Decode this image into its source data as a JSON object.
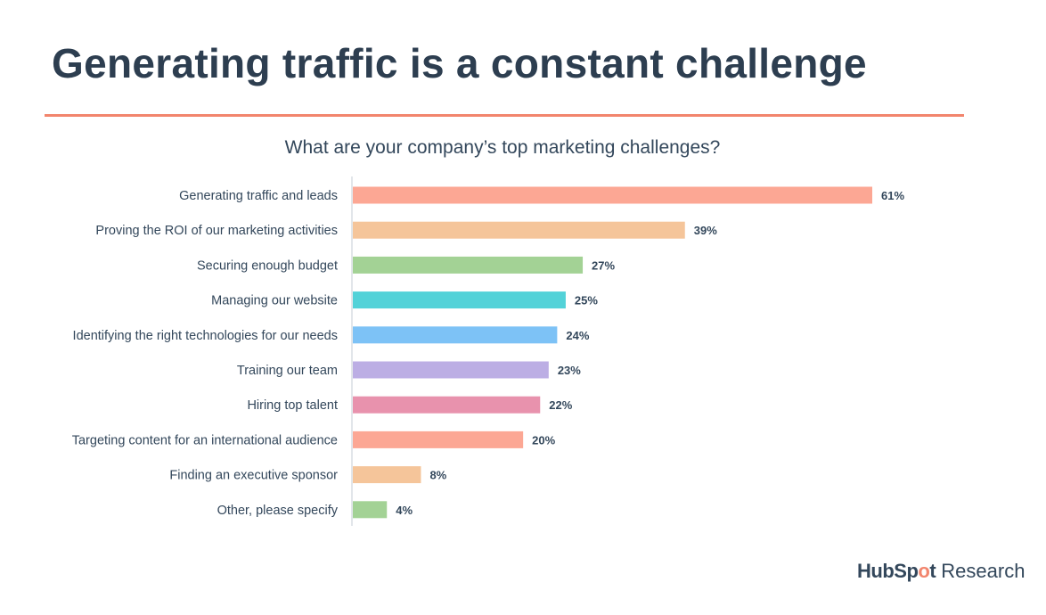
{
  "page": {
    "title": "Generating traffic is a constant challenge"
  },
  "brand": {
    "name_part1": "HubSp",
    "spoke_glyph": "o",
    "name_part2": "t",
    "name_part3": "Research",
    "accent_color": "#f2856d"
  },
  "chart_data": {
    "type": "bar",
    "orientation": "horizontal",
    "title": "What are your company’s top marketing challenges?",
    "xlabel": "",
    "ylabel": "",
    "xlim": [
      0,
      61
    ],
    "grid": false,
    "legend": "none",
    "categories": [
      "Generating traffic and leads",
      "Proving the ROI of our marketing activities",
      "Securing enough budget",
      "Managing our website",
      "Identifying the right technologies for our needs",
      "Training our team",
      "Hiring top talent",
      "Targeting content for an international audience",
      "Finding an executive sponsor",
      "Other, please specify"
    ],
    "values": [
      61,
      39,
      27,
      25,
      24,
      23,
      22,
      20,
      8,
      4
    ],
    "value_labels": [
      "61%",
      "39%",
      "27%",
      "25%",
      "24%",
      "23%",
      "22%",
      "20%",
      "8%",
      "4%"
    ],
    "colors": [
      "#fca794",
      "#f5c59a",
      "#a3d295",
      "#52d2d8",
      "#7dc2f6",
      "#bcaee4",
      "#e892ad",
      "#fca794",
      "#f5c59a",
      "#a3d295"
    ]
  }
}
